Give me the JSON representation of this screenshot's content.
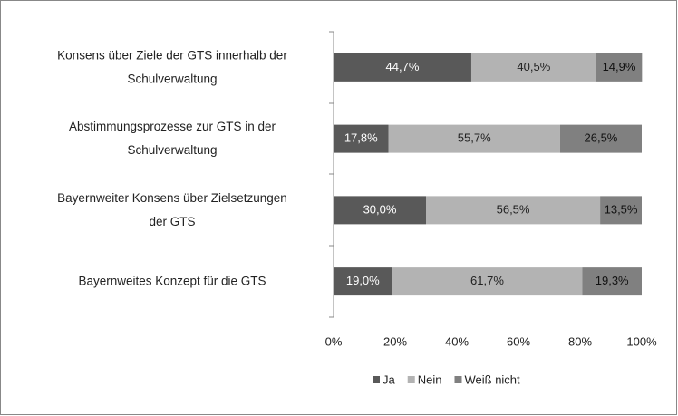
{
  "chart_data": {
    "type": "stacked-barh",
    "categories": [
      [
        "Konsens über Ziele der GTS innerhalb der",
        "Schulverwaltung"
      ],
      [
        "Abstimmungsprozesse zur GTS in der",
        "Schulverwaltung"
      ],
      [
        "Bayernweiter Konsens über Zielsetzungen",
        "der GTS"
      ],
      [
        "Bayernweites Konzept für die  GTS"
      ]
    ],
    "series": [
      {
        "name": "Ja",
        "color": "#595959",
        "label_color": "#ffffff",
        "values": [
          44.7,
          17.8,
          30.0,
          19.0
        ],
        "value_labels": [
          "44,7%",
          "17,8%",
          "30,0%",
          "19,0%"
        ]
      },
      {
        "name": "Nein",
        "color": "#b3b3b3",
        "label_color": "#222222",
        "values": [
          40.5,
          55.7,
          56.5,
          61.7
        ],
        "value_labels": [
          "40,5%",
          "55,7%",
          "56,5%",
          "61,7%"
        ]
      },
      {
        "name": "Weiß nicht",
        "color": "#808080",
        "label_color": "#111111",
        "values": [
          14.9,
          26.5,
          13.5,
          19.3
        ],
        "value_labels": [
          "14,9%",
          "26,5%",
          "13,5%",
          "19,3%"
        ]
      }
    ],
    "xlim": [
      0,
      100
    ],
    "xticks": [
      {
        "value": 0,
        "label": "0%"
      },
      {
        "value": 20,
        "label": "20%"
      },
      {
        "value": 40,
        "label": "40%"
      },
      {
        "value": 60,
        "label": "60%"
      },
      {
        "value": 80,
        "label": "80%"
      },
      {
        "value": 100,
        "label": "100%"
      }
    ],
    "legend": "bottom"
  }
}
